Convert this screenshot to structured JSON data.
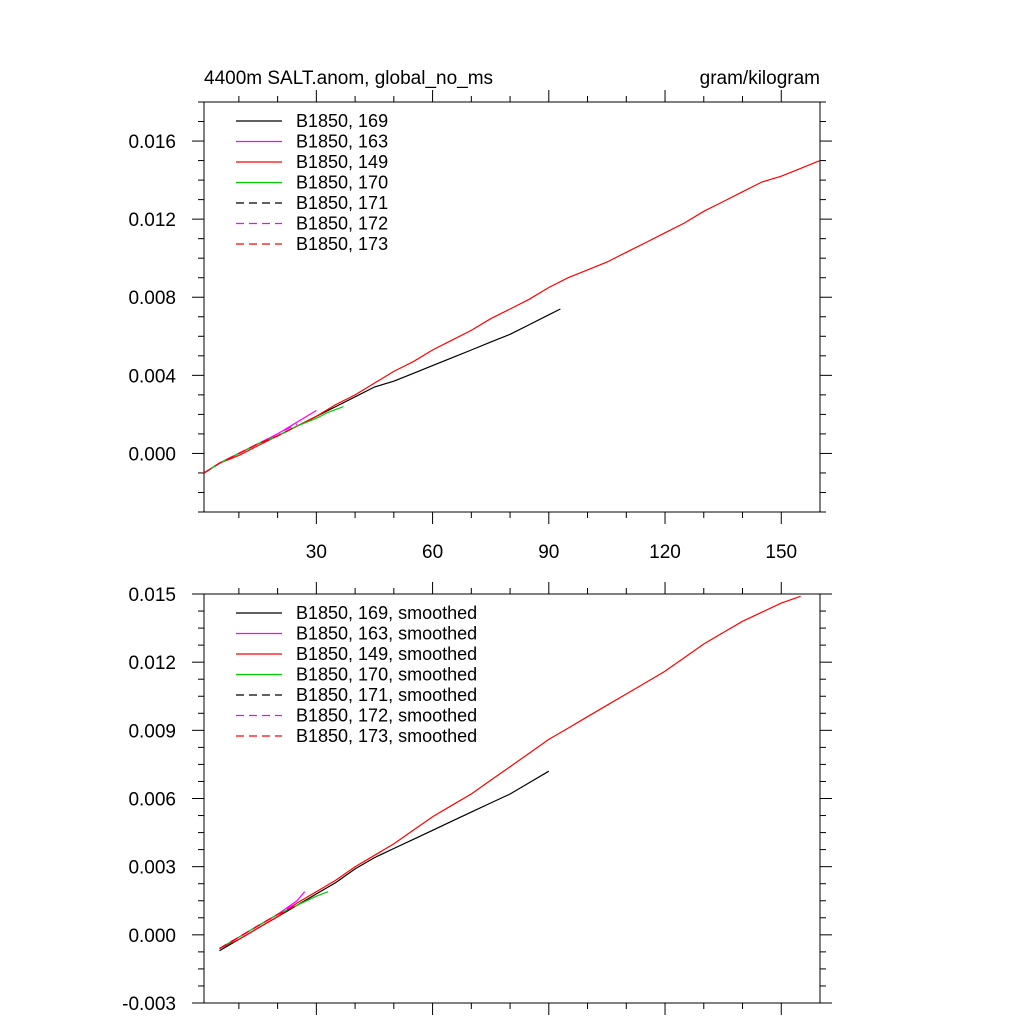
{
  "chart_data": [
    {
      "type": "line",
      "title_left": "4400m SALT.anom, global_no_ms",
      "title_right": "gram/kilogram",
      "xlabel": "",
      "ylabel": "",
      "xlim": [
        1,
        160
      ],
      "ylim": [
        -0.003,
        0.018
      ],
      "xticks": [
        30,
        60,
        90,
        120,
        150
      ],
      "yticks": [
        0.0,
        0.004,
        0.008,
        0.012,
        0.016
      ],
      "ytick_labels": [
        "0.000",
        "0.004",
        "0.008",
        "0.012",
        "0.016"
      ],
      "legend_position": "top-left",
      "series": [
        {
          "name": "B1850, 169",
          "color": "#000000",
          "dash": "solid",
          "x": [
            1,
            5,
            10,
            15,
            20,
            25,
            30,
            35,
            40,
            45,
            50,
            55,
            60,
            65,
            70,
            75,
            80,
            85,
            90,
            93
          ],
          "y": [
            -0.001,
            -0.0005,
            0.0,
            0.0005,
            0.0009,
            0.0014,
            0.0019,
            0.0024,
            0.0029,
            0.0034,
            0.0037,
            0.0041,
            0.0045,
            0.0049,
            0.0053,
            0.0057,
            0.0061,
            0.0066,
            0.0071,
            0.0074
          ]
        },
        {
          "name": "B1850, 163",
          "color": "#ff00ff",
          "dash": "solid",
          "x": [
            1,
            5,
            10,
            15,
            20,
            25,
            30
          ],
          "y": [
            -0.001,
            -0.0005,
            0.0,
            0.0005,
            0.001,
            0.0016,
            0.0022
          ]
        },
        {
          "name": "B1850, 149",
          "color": "#ff0000",
          "dash": "solid",
          "x": [
            1,
            5,
            10,
            15,
            20,
            25,
            30,
            35,
            40,
            45,
            50,
            55,
            60,
            65,
            70,
            75,
            80,
            85,
            90,
            95,
            100,
            105,
            110,
            115,
            120,
            125,
            130,
            135,
            140,
            145,
            150,
            155,
            160
          ],
          "y": [
            -0.001,
            -0.0005,
            -0.0001,
            0.0004,
            0.0009,
            0.0014,
            0.0019,
            0.0025,
            0.003,
            0.0036,
            0.0042,
            0.0047,
            0.0053,
            0.0058,
            0.0063,
            0.0069,
            0.0074,
            0.0079,
            0.0085,
            0.009,
            0.0094,
            0.0098,
            0.0103,
            0.0108,
            0.0113,
            0.0118,
            0.0124,
            0.0129,
            0.0134,
            0.0139,
            0.0142,
            0.0146,
            0.015
          ]
        },
        {
          "name": "B1850, 170",
          "color": "#00cc00",
          "dash": "solid",
          "x": [
            1,
            5,
            10,
            15,
            20,
            25,
            30,
            33,
            37
          ],
          "y": [
            -0.001,
            -0.0005,
            0.0,
            0.0005,
            0.0009,
            0.0014,
            0.0018,
            0.0021,
            0.0024
          ]
        },
        {
          "name": "B1850, 171",
          "color": "#000000",
          "dash": "dashed",
          "x": [
            1,
            5,
            10,
            15,
            20,
            25
          ],
          "y": [
            -0.001,
            -0.0005,
            0.0,
            0.0005,
            0.0009,
            0.0014
          ]
        },
        {
          "name": "B1850, 172",
          "color": "#ff00ff",
          "dash": "dashed",
          "x": [
            1,
            5,
            10,
            15,
            20,
            25
          ],
          "y": [
            -0.001,
            -0.0005,
            0.0,
            0.0005,
            0.001,
            0.0015
          ]
        },
        {
          "name": "B1850, 173",
          "color": "#ff0000",
          "dash": "dashed",
          "x": [
            1,
            5,
            10,
            15,
            20,
            25
          ],
          "y": [
            -0.001,
            -0.0005,
            0.0,
            0.0005,
            0.0009,
            0.0014
          ]
        }
      ]
    },
    {
      "type": "line",
      "xlabel": "",
      "ylabel": "",
      "xlim": [
        1,
        160
      ],
      "ylim": [
        -0.003,
        0.015
      ],
      "xticks": [
        30,
        60,
        90,
        120,
        150
      ],
      "yticks": [
        -0.003,
        0.0,
        0.003,
        0.006,
        0.009,
        0.012,
        0.015
      ],
      "ytick_labels": [
        "-0.003",
        "0.000",
        "0.003",
        "0.006",
        "0.009",
        "0.012",
        "0.015"
      ],
      "legend_position": "top-left",
      "series": [
        {
          "name": "B1850, 169, smoothed",
          "color": "#000000",
          "dash": "solid",
          "x": [
            5,
            10,
            15,
            20,
            25,
            30,
            35,
            40,
            45,
            50,
            55,
            60,
            65,
            70,
            75,
            80,
            85,
            90
          ],
          "y": [
            -0.0007,
            -0.0002,
            0.0003,
            0.0008,
            0.0013,
            0.0018,
            0.0023,
            0.0029,
            0.0034,
            0.0038,
            0.0042,
            0.0046,
            0.005,
            0.0054,
            0.0058,
            0.0062,
            0.0067,
            0.0072
          ]
        },
        {
          "name": "B1850, 163, smoothed",
          "color": "#ff00ff",
          "dash": "solid",
          "x": [
            5,
            10,
            15,
            20,
            25,
            27
          ],
          "y": [
            -0.0006,
            -0.0001,
            0.0004,
            0.0009,
            0.0015,
            0.0019
          ]
        },
        {
          "name": "B1850, 149, smoothed",
          "color": "#ff0000",
          "dash": "solid",
          "x": [
            5,
            10,
            15,
            20,
            25,
            30,
            35,
            40,
            45,
            50,
            55,
            60,
            65,
            70,
            75,
            80,
            85,
            90,
            95,
            100,
            105,
            110,
            115,
            120,
            125,
            130,
            135,
            140,
            145,
            150,
            155
          ],
          "y": [
            -0.0006,
            -0.0002,
            0.0003,
            0.0008,
            0.0014,
            0.0019,
            0.0024,
            0.003,
            0.0035,
            0.004,
            0.0046,
            0.0052,
            0.0057,
            0.0062,
            0.0068,
            0.0074,
            0.008,
            0.0086,
            0.0091,
            0.0096,
            0.0101,
            0.0106,
            0.0111,
            0.0116,
            0.0122,
            0.0128,
            0.0133,
            0.0138,
            0.0142,
            0.0146,
            0.0149
          ]
        },
        {
          "name": "B1850, 170, smoothed",
          "color": "#00cc00",
          "dash": "solid",
          "x": [
            5,
            10,
            15,
            20,
            25,
            30,
            33
          ],
          "y": [
            -0.0006,
            -0.0001,
            0.0004,
            0.0009,
            0.0013,
            0.0017,
            0.0019
          ]
        },
        {
          "name": "B1850, 171, smoothed",
          "color": "#000000",
          "dash": "dashed",
          "x": [
            5,
            10,
            15,
            20,
            25
          ],
          "y": [
            -0.0006,
            -0.0001,
            0.0004,
            0.0009,
            0.0013
          ]
        },
        {
          "name": "B1850, 172, smoothed",
          "color": "#ff00ff",
          "dash": "dashed",
          "x": [
            5,
            10,
            15,
            20,
            25
          ],
          "y": [
            -0.0006,
            -0.0001,
            0.0004,
            0.0009,
            0.0014
          ]
        },
        {
          "name": "B1850, 173, smoothed",
          "color": "#ff0000",
          "dash": "dashed",
          "x": [
            5,
            10,
            15,
            20,
            25
          ],
          "y": [
            -0.0006,
            -0.0001,
            0.0004,
            0.0009,
            0.0013
          ]
        }
      ]
    }
  ]
}
